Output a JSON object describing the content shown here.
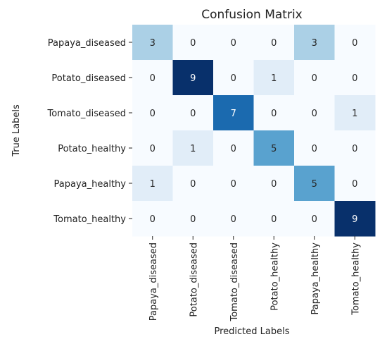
{
  "chart_data": {
    "type": "heatmap",
    "title": "Confusion Matrix",
    "xlabel": "Predicted Labels",
    "ylabel": "True Labels",
    "row_labels": [
      "Papaya_diseased",
      "Potato_diseased",
      "Tomato_diseased",
      "Potato_healthy",
      "Papaya_healthy",
      "Tomato_healthy"
    ],
    "col_labels": [
      "Papaya_diseased",
      "Potato_diseased",
      "Tomato_diseased",
      "Potato_healthy",
      "Papaya_healthy",
      "Tomato_healthy"
    ],
    "values": [
      [
        3,
        0,
        0,
        0,
        3,
        0
      ],
      [
        0,
        9,
        0,
        1,
        0,
        0
      ],
      [
        0,
        0,
        7,
        0,
        0,
        1
      ],
      [
        0,
        1,
        0,
        5,
        0,
        0
      ],
      [
        1,
        0,
        0,
        0,
        5,
        0
      ],
      [
        0,
        0,
        0,
        0,
        0,
        9
      ]
    ],
    "value_range": [
      0,
      9
    ],
    "colormap": [
      "#f7fbff",
      "#deebf7",
      "#c6dbef",
      "#9ecae1",
      "#6baed6",
      "#4292c6",
      "#2171b5",
      "#08519c",
      "#08306b"
    ],
    "colorbar": false,
    "grid": false
  }
}
